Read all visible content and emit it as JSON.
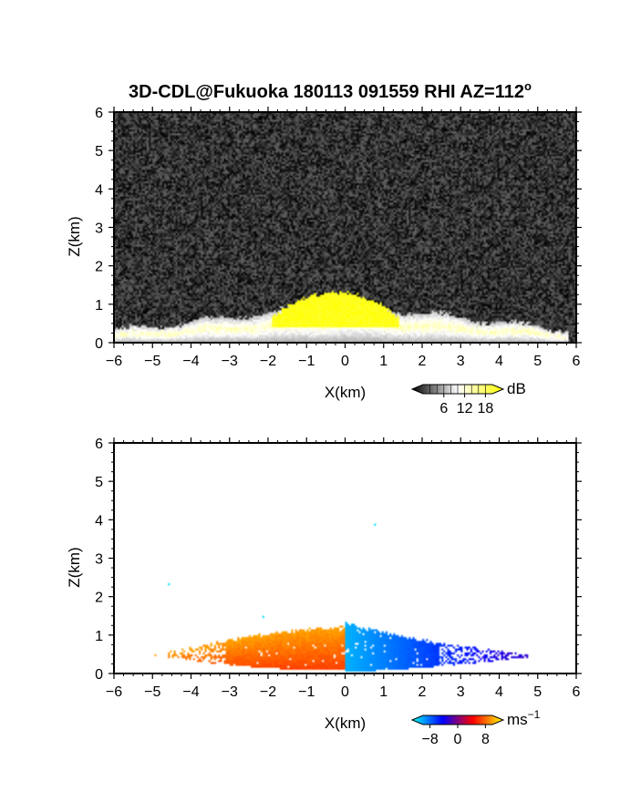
{
  "title": "3D-CDL@Fukuoka 180113 091559 RHI AZ=112",
  "title_degree": "o",
  "chart_data": [
    {
      "type": "heatmap",
      "quantity": "backscatter intensity",
      "xlabel": "X(km)",
      "ylabel": "Z(km)",
      "xlim": [
        -6,
        6
      ],
      "ylim": [
        0,
        6
      ],
      "xticks": [
        "-6",
        "-5",
        "-4",
        "-3",
        "-2",
        "-1",
        "0",
        "1",
        "2",
        "3",
        "4",
        "5",
        "6"
      ],
      "yticks": [
        "0",
        "1",
        "2",
        "3",
        "4",
        "5",
        "6"
      ],
      "colorbar": {
        "unit": "dB",
        "ticks": [
          "6",
          "12",
          "18"
        ],
        "range": [
          0,
          20
        ],
        "colors": [
          "#000000",
          "#ffffff",
          "#ffff00"
        ]
      },
      "background_noise_dB": [
        0,
        4
      ],
      "features": [
        {
          "label": "aerosol layer",
          "x_range": [
            -6,
            5.8
          ],
          "top_z": [
            0.3,
            1.0
          ],
          "dB": [
            6,
            14
          ]
        },
        {
          "label": "strong echo",
          "x_range": [
            -1.9,
            1.4
          ],
          "top_z": 1.3,
          "dB": 18
        }
      ]
    },
    {
      "type": "heatmap",
      "quantity": "Doppler radial velocity",
      "xlabel": "X(km)",
      "ylabel": "Z(km)",
      "xlim": [
        -6,
        6
      ],
      "ylim": [
        0,
        6
      ],
      "xticks": [
        "-6",
        "-5",
        "-4",
        "-3",
        "-2",
        "-1",
        "0",
        "1",
        "2",
        "3",
        "4",
        "5",
        "6"
      ],
      "yticks": [
        "0",
        "1",
        "2",
        "3",
        "4",
        "5",
        "6"
      ],
      "colorbar": {
        "unit": "ms",
        "unit_exponent": "-1",
        "ticks": [
          "-8",
          "0",
          "8"
        ],
        "range": [
          -10,
          10
        ],
        "colors": [
          "#00ffff",
          "#0000ff",
          "#ff0000",
          "#ffff00"
        ]
      },
      "features": [
        {
          "label": "positive velocity region",
          "x_range": [
            -5.6,
            0
          ],
          "top_z": [
            0.3,
            1.2
          ],
          "velocity": [
            2,
            8
          ]
        },
        {
          "label": "negative velocity region",
          "x_range": [
            0,
            5.4
          ],
          "top_z": [
            0.4,
            1.35
          ],
          "velocity": [
            -8,
            -2
          ]
        }
      ],
      "isolated_points": [
        {
          "x": -4.6,
          "z": 2.35,
          "velocity": -9
        },
        {
          "x": 0.75,
          "z": 3.9,
          "velocity": -9
        },
        {
          "x": -2.15,
          "z": 1.5,
          "velocity": -9
        }
      ]
    }
  ]
}
